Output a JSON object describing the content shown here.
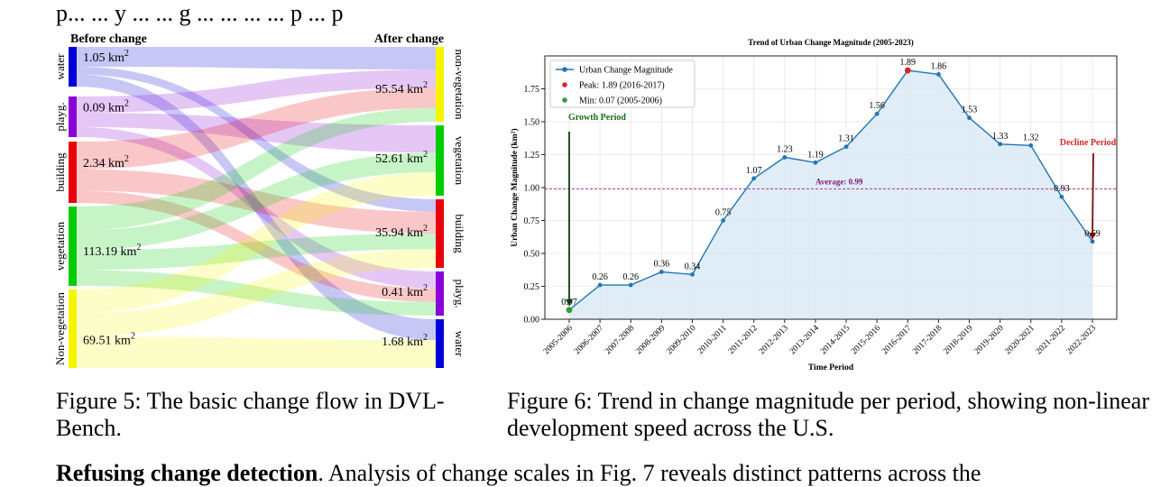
{
  "page": {
    "top_text": "p... ... y ... ... g ... ... ... ... p ... p",
    "bottom_text_bold": "Refusing change detection",
    "bottom_text_rest": ". Analysis of change scales in Fig. 7 reveals distinct patterns across the"
  },
  "figure5": {
    "caption": "Figure 5: The basic change flow in DVL-Bench.",
    "left_header": "Before change",
    "right_header": "After change",
    "unit_sup": "2",
    "left_nodes": [
      {
        "label": "water",
        "value": "1.05 km",
        "color": "#0000d8"
      },
      {
        "label": "playg.",
        "value": "0.09 km",
        "color": "#8a00d8"
      },
      {
        "label": "building",
        "value": "2.34 km",
        "color": "#e8000a"
      },
      {
        "label": "vegetation",
        "value": "113.19 km",
        "color": "#00cc00"
      },
      {
        "label": "Non-vegetation",
        "value": "69.51 km",
        "color": "#f5f500"
      }
    ],
    "right_nodes": [
      {
        "label": "non-vegetation",
        "value": "95.54 km",
        "color": "#f5f500"
      },
      {
        "label": "vegetation",
        "value": "52.61 km",
        "color": "#00cc00"
      },
      {
        "label": "building",
        "value": "35.94 km",
        "color": "#e8000a"
      },
      {
        "label": "playg.",
        "value": "0.41 km",
        "color": "#8a00d8"
      },
      {
        "label": "water",
        "value": "1.68 km",
        "color": "#0000d8"
      }
    ]
  },
  "figure6": {
    "caption": "Figure 6: Trend in change magnitude per period, showing non-linear development speed across the U.S."
  },
  "chart_data": {
    "type": "line",
    "title": "Trend of Urban Change Magnitude (2005-2023)",
    "xlabel": "Time Period",
    "ylabel": "Urban Change Magnitude (km²)",
    "ylim": [
      0,
      2.0
    ],
    "yticks": [
      "0.00",
      "0.25",
      "0.50",
      "0.75",
      "1.00",
      "1.25",
      "1.50",
      "1.75"
    ],
    "grid": true,
    "legend_placement": "top-left",
    "x": [
      "2005-2006",
      "2006-2007",
      "2007-2008",
      "2008-2009",
      "2009-2010",
      "2010-2011",
      "2011-2012",
      "2012-2013",
      "2013-2014",
      "2014-2015",
      "2015-2016",
      "2016-2017",
      "2017-2018",
      "2018-2019",
      "2019-2020",
      "2020-2021",
      "2021-2022",
      "2022-2023"
    ],
    "series": [
      {
        "name": "Urban Change Magnitude",
        "values": [
          0.07,
          0.26,
          0.26,
          0.36,
          0.34,
          0.75,
          1.07,
          1.23,
          1.19,
          1.31,
          1.56,
          1.89,
          1.86,
          1.53,
          1.33,
          1.32,
          0.93,
          0.59
        ]
      }
    ],
    "point_labels": [
      "0.07",
      "0.26",
      "0.26",
      "0.36",
      "0.34",
      "0.75",
      "1.07",
      "1.23",
      "1.19",
      "1.31",
      "1.56",
      "1.89",
      "1.86",
      "1.53",
      "1.33",
      "1.32",
      "0.93",
      "0.59"
    ],
    "legend": [
      "Urban Change Magnitude",
      "Peak: 1.89 (2016-2017)",
      "Min: 0.07 (2005-2006)"
    ],
    "average": {
      "value": 0.99,
      "label": "Average: 0.99"
    },
    "annotations": [
      "Growth Period",
      "Decline Period"
    ],
    "colors": {
      "line": "#1f77b4",
      "fill": "#dbe9f5",
      "peak": "#d62728",
      "min": "#2ca02c",
      "average": "#b0409a",
      "growth": "#1a6e1a",
      "decline": "#d62728"
    }
  }
}
